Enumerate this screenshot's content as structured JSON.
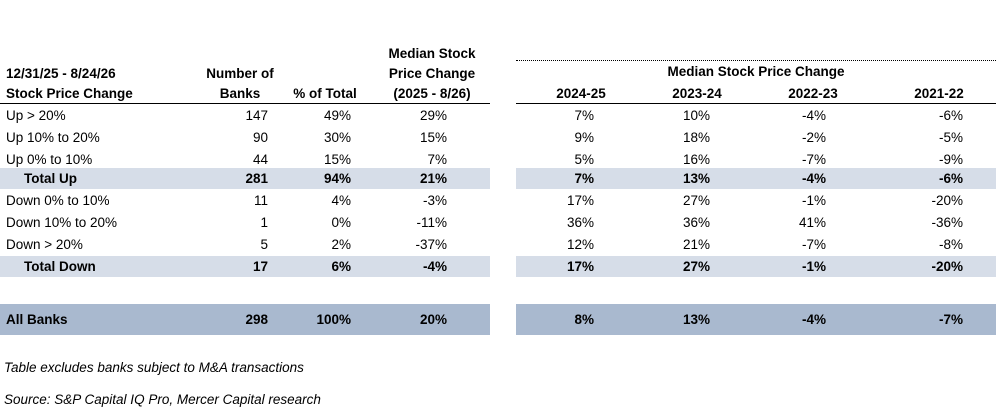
{
  "chart_data": {
    "type": "table",
    "header": {
      "period_line1": "12/31/25 - 8/24/26",
      "period_line2": "Stock Price Change",
      "banks_line1": "Number of",
      "banks_line2": "Banks",
      "pct_total": "% of Total",
      "median_line1": "Median Stock",
      "median_line2": "Price Change",
      "median_line3": "(2025 - 8/26)",
      "group_title": "Median Stock Price Change",
      "years": [
        "2024-25",
        "2023-24",
        "2022-23",
        "2021-22"
      ]
    },
    "rows": [
      {
        "label": "Up > 20%",
        "banks": "147",
        "pct": "49%",
        "median": "29%",
        "years": [
          "7%",
          "10%",
          "-4%",
          "-6%"
        ],
        "style": "normal"
      },
      {
        "label": "Up 10% to 20%",
        "banks": "90",
        "pct": "30%",
        "median": "15%",
        "years": [
          "9%",
          "18%",
          "-2%",
          "-5%"
        ],
        "style": "normal"
      },
      {
        "label": "Up 0% to 10%",
        "banks": "44",
        "pct": "15%",
        "median": "7%",
        "years": [
          "5%",
          "16%",
          "-7%",
          "-9%"
        ],
        "style": "normal"
      },
      {
        "label": "Total Up",
        "banks": "281",
        "pct": "94%",
        "median": "21%",
        "years": [
          "7%",
          "13%",
          "-4%",
          "-6%"
        ],
        "style": "total"
      },
      {
        "label": "Down 0% to 10%",
        "banks": "11",
        "pct": "4%",
        "median": "-3%",
        "years": [
          "17%",
          "27%",
          "-1%",
          "-20%"
        ],
        "style": "normal"
      },
      {
        "label": "Down 10% to 20%",
        "banks": "1",
        "pct": "0%",
        "median": "-11%",
        "years": [
          "36%",
          "36%",
          "41%",
          "-36%"
        ],
        "style": "normal"
      },
      {
        "label": "Down > 20%",
        "banks": "5",
        "pct": "2%",
        "median": "-37%",
        "years": [
          "12%",
          "21%",
          "-7%",
          "-8%"
        ],
        "style": "normal"
      },
      {
        "label": "Total Down",
        "banks": "17",
        "pct": "6%",
        "median": "-4%",
        "years": [
          "17%",
          "27%",
          "-1%",
          "-20%"
        ],
        "style": "total"
      },
      {
        "label": "All Banks",
        "banks": "298",
        "pct": "100%",
        "median": "20%",
        "years": [
          "8%",
          "13%",
          "-4%",
          "-7%"
        ],
        "style": "all"
      }
    ],
    "notes": [
      "Table excludes banks subject to M&A transactions",
      "Source:  S&P Capital IQ Pro, Mercer Capital research"
    ],
    "colors": {
      "total_band": "#d6dde8",
      "all_band": "#a9b9cf"
    }
  }
}
